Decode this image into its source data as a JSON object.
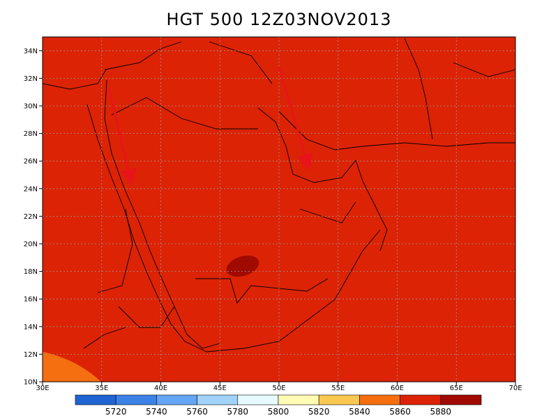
{
  "title": "HGT 500 12Z03NOV2013",
  "map": {
    "lon_range": [
      30,
      70
    ],
    "lat_range": [
      10,
      35
    ],
    "lon_tick_labels": [
      "30E",
      "35E",
      "40E",
      "45E",
      "50E",
      "55E",
      "60E",
      "65E",
      "70E"
    ],
    "lat_tick_labels": [
      "10N",
      "12N",
      "14N",
      "16N",
      "18N",
      "20N",
      "22N",
      "24N",
      "26N",
      "28N",
      "30N",
      "32N",
      "34N"
    ],
    "gridlines": true,
    "annotations": [
      {
        "type": "arrow",
        "color": "#e8141a",
        "from": [
          35.6,
          31.3
        ],
        "to": [
          37.5,
          24.5
        ]
      },
      {
        "type": "arrow",
        "color": "#e8141a",
        "from": [
          50.0,
          32.8
        ],
        "to": [
          52.5,
          25.6
        ]
      }
    ]
  },
  "colorbar": {
    "levels": [
      "5720",
      "5740",
      "5760",
      "5780",
      "5800",
      "5820",
      "5840",
      "5860",
      "5880"
    ],
    "colors": [
      "#1e64d2",
      "#3c82e6",
      "#64a5f5",
      "#a0d2fa",
      "#e6faff",
      "#fffab4",
      "#fac850",
      "#f56e0f",
      "#dc2305",
      "#a00a00"
    ]
  },
  "chart_data": {
    "type": "heatmap",
    "title": "HGT 500 12Z03NOV2013",
    "variable": "HGT 500",
    "xlim": [
      30,
      70
    ],
    "ylim": [
      10,
      35
    ],
    "contour_levels": [
      5720,
      5740,
      5760,
      5780,
      5800,
      5820,
      5840,
      5860,
      5880
    ]
  }
}
